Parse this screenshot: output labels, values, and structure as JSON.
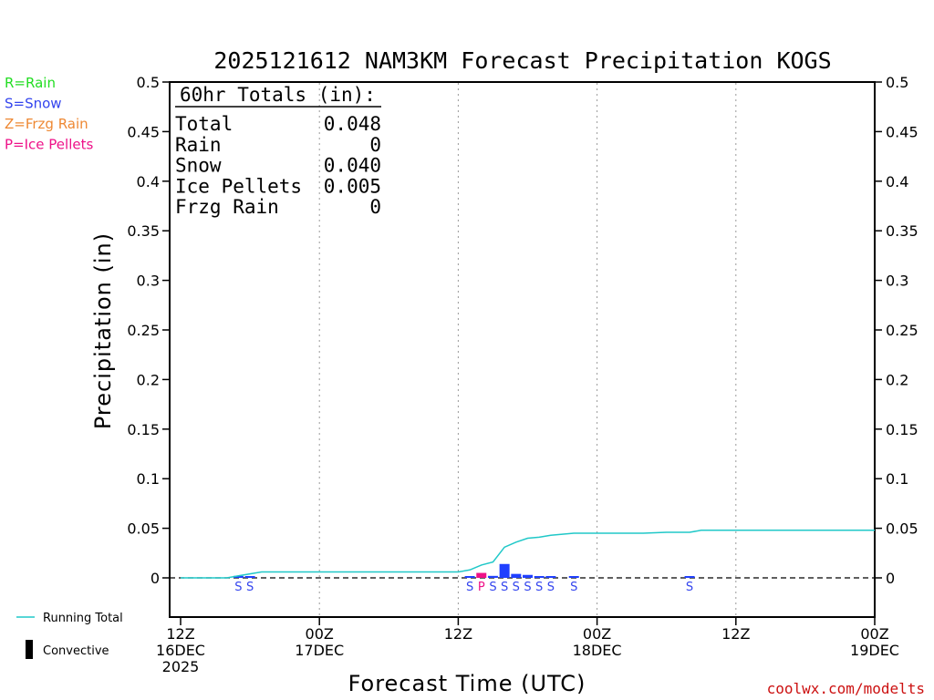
{
  "chart_data": {
    "type": "bar",
    "title": "2025121612 NAM3KM Forecast Precipitation KOGS",
    "ylabel": "Precipitation (in)",
    "xlabel": "Forecast Time (UTC)",
    "ylim": [
      -0.04,
      0.5
    ],
    "yticks": [
      0,
      0.05,
      0.1,
      0.15,
      0.2,
      0.25,
      0.3,
      0.35,
      0.4,
      0.45,
      0.5
    ],
    "ytick_labels": [
      "0",
      "0.05",
      "0.1",
      "0.15",
      "0.2",
      "0.25",
      "0.3",
      "0.35",
      "0.4",
      "0.45",
      "0.5"
    ],
    "xlim_hours": [
      0,
      60
    ],
    "xticks": [
      {
        "hour": 0,
        "lines": [
          "12Z",
          "16DEC",
          "2025"
        ]
      },
      {
        "hour": 12,
        "lines": [
          "00Z",
          "17DEC"
        ]
      },
      {
        "hour": 24,
        "lines": [
          "12Z"
        ]
      },
      {
        "hour": 36,
        "lines": [
          "00Z",
          "18DEC"
        ]
      },
      {
        "hour": 48,
        "lines": [
          "12Z"
        ]
      },
      {
        "hour": 60,
        "lines": [
          "00Z",
          "19DEC"
        ]
      }
    ],
    "bars": [
      {
        "hour": 5,
        "value": 0.002,
        "ptype": "S"
      },
      {
        "hour": 6,
        "value": 0.001,
        "ptype": "S"
      },
      {
        "hour": 25,
        "value": 0.001,
        "ptype": "S"
      },
      {
        "hour": 26,
        "value": 0.005,
        "ptype": "P"
      },
      {
        "hour": 27,
        "value": 0.002,
        "ptype": "S"
      },
      {
        "hour": 28,
        "value": 0.014,
        "ptype": "S"
      },
      {
        "hour": 29,
        "value": 0.004,
        "ptype": "S"
      },
      {
        "hour": 30,
        "value": 0.003,
        "ptype": "S"
      },
      {
        "hour": 31,
        "value": 0.001,
        "ptype": "S"
      },
      {
        "hour": 32,
        "value": 0.001,
        "ptype": "S"
      },
      {
        "hour": 34,
        "value": 0.001,
        "ptype": "S"
      },
      {
        "hour": 44,
        "value": 0.001,
        "ptype": "S"
      }
    ],
    "running_total": {
      "name": "Running Total",
      "hours": [
        0,
        4,
        5,
        6,
        7,
        8,
        12,
        18,
        24,
        25,
        26,
        27,
        28,
        29,
        30,
        31,
        32,
        33,
        34,
        35,
        36,
        40,
        42,
        44,
        45,
        48,
        54,
        60
      ],
      "values": [
        0,
        0,
        0.002,
        0.004,
        0.006,
        0.006,
        0.006,
        0.006,
        0.006,
        0.008,
        0.013,
        0.016,
        0.031,
        0.036,
        0.04,
        0.041,
        0.043,
        0.044,
        0.045,
        0.045,
        0.045,
        0.045,
        0.046,
        0.046,
        0.048,
        0.048,
        0.048,
        0.048
      ]
    },
    "totals_box": {
      "header": "60hr Totals (in):",
      "rows": [
        {
          "label": "Total",
          "value": "0.048"
        },
        {
          "label": "Rain",
          "value": "0"
        },
        {
          "label": "Snow",
          "value": "0.040"
        },
        {
          "label": "Ice Pellets",
          "value": "0.005"
        },
        {
          "label": "Frzg Rain",
          "value": "0"
        }
      ]
    },
    "ptype_legend": [
      {
        "code": "R",
        "label": "R=Rain",
        "color": "#22dd22"
      },
      {
        "code": "S",
        "label": "S=Snow",
        "color": "#3344ee"
      },
      {
        "code": "Z",
        "label": "Z=Frzg Rain",
        "color": "#ee8833"
      },
      {
        "code": "P",
        "label": "P=Ice Pellets",
        "color": "#ee1188"
      }
    ],
    "bar_colors": {
      "S": "#2040ff",
      "P": "#ee1188",
      "R": "#22dd22",
      "Z": "#ee8833"
    },
    "series_legend": {
      "running_total_label": "Running Total",
      "running_total_color": "#20c8c8",
      "convective_label": "Convective",
      "convective_color": "#000000"
    },
    "credit": "coolwx.com/modelts"
  }
}
